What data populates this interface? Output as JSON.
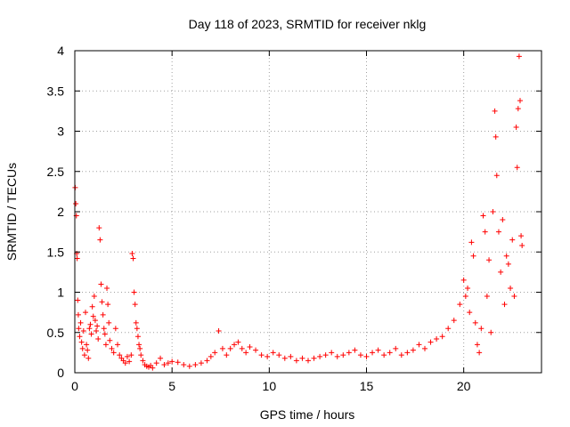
{
  "chart_data": {
    "type": "scatter",
    "title": "Day 118 of 2023, SRMTID for receiver nklg",
    "xlabel": "GPS time / hours",
    "ylabel": "SRMTID / TECUs",
    "xlim": [
      0,
      24
    ],
    "ylim": [
      0,
      4
    ],
    "xticks": [
      0,
      5,
      10,
      15,
      20
    ],
    "xtick_labels": [
      "0",
      "5",
      "10",
      "15",
      "20"
    ],
    "yticks": [
      0,
      0.5,
      1,
      1.5,
      2,
      2.5,
      3,
      3.5,
      4
    ],
    "ytick_labels": [
      "0",
      "0.5",
      "1",
      "1.5",
      "2",
      "2.5",
      "3",
      "3.5",
      "4"
    ],
    "grid": true,
    "marker": "+",
    "color": "#ff0000",
    "series": [
      {
        "name": "SRMTID",
        "points": [
          [
            0.02,
            2.3
          ],
          [
            0.05,
            2.1
          ],
          [
            0.08,
            1.95
          ],
          [
            0.1,
            1.48
          ],
          [
            0.12,
            1.42
          ],
          [
            0.15,
            0.9
          ],
          [
            0.18,
            0.72
          ],
          [
            0.2,
            0.55
          ],
          [
            0.25,
            0.45
          ],
          [
            0.3,
            0.62
          ],
          [
            0.35,
            0.38
          ],
          [
            0.4,
            0.3
          ],
          [
            0.45,
            0.52
          ],
          [
            0.5,
            0.22
          ],
          [
            0.55,
            0.75
          ],
          [
            0.6,
            0.35
          ],
          [
            0.65,
            0.28
          ],
          [
            0.7,
            0.18
          ],
          [
            0.75,
            0.55
          ],
          [
            0.8,
            0.6
          ],
          [
            0.85,
            0.48
          ],
          [
            0.9,
            0.82
          ],
          [
            0.95,
            0.7
          ],
          [
            1.0,
            0.95
          ],
          [
            1.05,
            0.65
          ],
          [
            1.1,
            0.52
          ],
          [
            1.15,
            0.58
          ],
          [
            1.2,
            0.42
          ],
          [
            1.25,
            1.8
          ],
          [
            1.3,
            1.65
          ],
          [
            1.35,
            1.1
          ],
          [
            1.4,
            0.88
          ],
          [
            1.45,
            0.72
          ],
          [
            1.5,
            0.55
          ],
          [
            1.55,
            0.48
          ],
          [
            1.6,
            0.35
          ],
          [
            1.65,
            1.05
          ],
          [
            1.7,
            0.85
          ],
          [
            1.75,
            0.62
          ],
          [
            1.8,
            0.4
          ],
          [
            1.9,
            0.3
          ],
          [
            2.0,
            0.25
          ],
          [
            2.1,
            0.55
          ],
          [
            2.2,
            0.35
          ],
          [
            2.3,
            0.22
          ],
          [
            2.4,
            0.18
          ],
          [
            2.5,
            0.15
          ],
          [
            2.6,
            0.12
          ],
          [
            2.7,
            0.2
          ],
          [
            2.8,
            0.14
          ],
          [
            2.9,
            0.22
          ],
          [
            2.95,
            1.48
          ],
          [
            3.0,
            1.42
          ],
          [
            3.05,
            1.0
          ],
          [
            3.1,
            0.85
          ],
          [
            3.15,
            0.62
          ],
          [
            3.2,
            0.55
          ],
          [
            3.25,
            0.45
          ],
          [
            3.3,
            0.35
          ],
          [
            3.35,
            0.3
          ],
          [
            3.4,
            0.22
          ],
          [
            3.5,
            0.15
          ],
          [
            3.6,
            0.1
          ],
          [
            3.7,
            0.08
          ],
          [
            3.8,
            0.07
          ],
          [
            3.9,
            0.09
          ],
          [
            4.0,
            0.06
          ],
          [
            4.2,
            0.12
          ],
          [
            4.4,
            0.18
          ],
          [
            4.6,
            0.1
          ],
          [
            4.8,
            0.12
          ],
          [
            5.0,
            0.14
          ],
          [
            5.3,
            0.13
          ],
          [
            5.6,
            0.1
          ],
          [
            5.9,
            0.08
          ],
          [
            6.2,
            0.1
          ],
          [
            6.5,
            0.12
          ],
          [
            6.8,
            0.15
          ],
          [
            7.0,
            0.2
          ],
          [
            7.2,
            0.25
          ],
          [
            7.4,
            0.52
          ],
          [
            7.6,
            0.3
          ],
          [
            7.8,
            0.22
          ],
          [
            8.0,
            0.3
          ],
          [
            8.2,
            0.35
          ],
          [
            8.4,
            0.38
          ],
          [
            8.6,
            0.3
          ],
          [
            8.8,
            0.25
          ],
          [
            9.0,
            0.32
          ],
          [
            9.3,
            0.28
          ],
          [
            9.6,
            0.22
          ],
          [
            9.9,
            0.2
          ],
          [
            10.2,
            0.25
          ],
          [
            10.5,
            0.22
          ],
          [
            10.8,
            0.18
          ],
          [
            11.1,
            0.2
          ],
          [
            11.4,
            0.15
          ],
          [
            11.7,
            0.18
          ],
          [
            12.0,
            0.15
          ],
          [
            12.3,
            0.18
          ],
          [
            12.6,
            0.2
          ],
          [
            12.9,
            0.22
          ],
          [
            13.2,
            0.25
          ],
          [
            13.5,
            0.2
          ],
          [
            13.8,
            0.22
          ],
          [
            14.1,
            0.25
          ],
          [
            14.4,
            0.28
          ],
          [
            14.7,
            0.22
          ],
          [
            15.0,
            0.2
          ],
          [
            15.3,
            0.25
          ],
          [
            15.6,
            0.28
          ],
          [
            15.9,
            0.22
          ],
          [
            16.2,
            0.25
          ],
          [
            16.5,
            0.3
          ],
          [
            16.8,
            0.22
          ],
          [
            17.1,
            0.25
          ],
          [
            17.4,
            0.28
          ],
          [
            17.7,
            0.35
          ],
          [
            18.0,
            0.3
          ],
          [
            18.3,
            0.38
          ],
          [
            18.6,
            0.42
          ],
          [
            18.9,
            0.45
          ],
          [
            19.2,
            0.55
          ],
          [
            19.5,
            0.65
          ],
          [
            19.8,
            0.85
          ],
          [
            20.0,
            1.15
          ],
          [
            20.1,
            0.95
          ],
          [
            20.2,
            1.05
          ],
          [
            20.3,
            0.75
          ],
          [
            20.4,
            1.62
          ],
          [
            20.5,
            1.45
          ],
          [
            20.6,
            0.62
          ],
          [
            20.7,
            0.35
          ],
          [
            20.8,
            0.25
          ],
          [
            20.9,
            0.55
          ],
          [
            21.0,
            1.95
          ],
          [
            21.1,
            1.75
          ],
          [
            21.2,
            0.95
          ],
          [
            21.3,
            1.4
          ],
          [
            21.4,
            0.5
          ],
          [
            21.5,
            2.0
          ],
          [
            21.6,
            3.25
          ],
          [
            21.65,
            2.93
          ],
          [
            21.7,
            2.45
          ],
          [
            21.8,
            1.75
          ],
          [
            21.9,
            1.25
          ],
          [
            22.0,
            1.9
          ],
          [
            22.1,
            0.85
          ],
          [
            22.2,
            1.45
          ],
          [
            22.3,
            1.35
          ],
          [
            22.4,
            1.05
          ],
          [
            22.5,
            1.65
          ],
          [
            22.6,
            0.95
          ],
          [
            22.7,
            3.05
          ],
          [
            22.75,
            2.55
          ],
          [
            22.8,
            3.28
          ],
          [
            22.85,
            3.93
          ],
          [
            22.9,
            3.38
          ],
          [
            22.95,
            1.7
          ],
          [
            23.0,
            1.58
          ]
        ]
      }
    ]
  }
}
